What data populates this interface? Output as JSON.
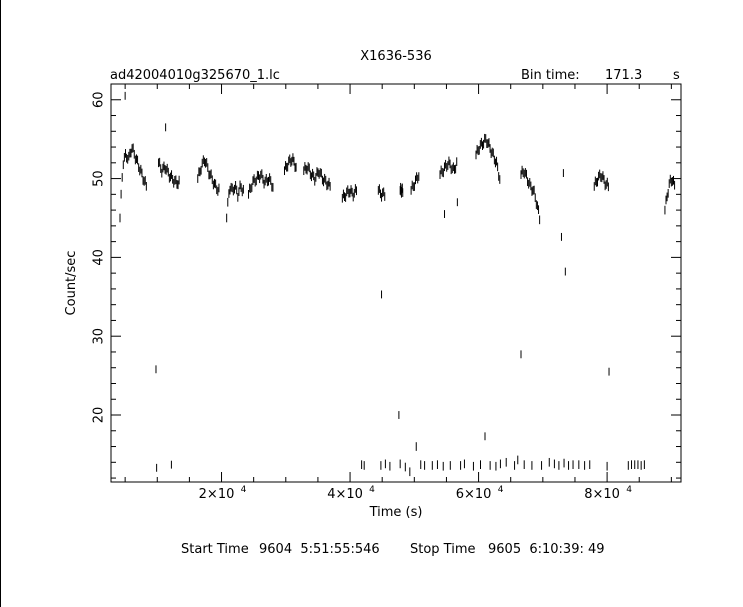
{
  "chart_data": {
    "type": "scatter",
    "title": "X1636-536",
    "file_label": "ad42004010g325670_1.lc",
    "bin_time_label": "Bin time:",
    "bin_time_value": "171.3",
    "bin_time_unit": "s",
    "xlabel": "Time (s)",
    "ylabel": "Count/sec",
    "xlim": [
      2800,
      91500
    ],
    "ylim": [
      11.5,
      62
    ],
    "x_ticks": [
      {
        "value": 20000,
        "mantissa": "2×10",
        "exp": "4"
      },
      {
        "value": 40000,
        "mantissa": "4×10",
        "exp": "4"
      },
      {
        "value": 60000,
        "mantissa": "6×10",
        "exp": "4"
      },
      {
        "value": 80000,
        "mantissa": "8×10",
        "exp": "4"
      }
    ],
    "y_ticks": [
      "20",
      "30",
      "40",
      "50",
      "60"
    ],
    "y_tick_values": [
      20,
      30,
      40,
      50,
      60
    ],
    "footer": {
      "start_label": "Start Time",
      "start_value": "9604  5:51:55:546",
      "stop_label": "Stop Time",
      "stop_value": "9605  6:10:39: 49"
    },
    "segments": [
      {
        "x0": 4200,
        "x1": 8300,
        "y": [
          45,
          52,
          53,
          52.5,
          54,
          53,
          52,
          51,
          50,
          49
        ]
      },
      {
        "x0": 10200,
        "x1": 13400,
        "y": [
          52,
          51,
          51.5,
          50.5,
          50,
          49.5,
          49.5
        ]
      },
      {
        "x0": 16300,
        "x1": 19600,
        "y": [
          50,
          51.5,
          52.5,
          51,
          50,
          49,
          48.5
        ]
      },
      {
        "x0": 20800,
        "x1": 23400,
        "y": [
          45,
          49,
          48.5,
          49,
          48,
          49,
          48.5
        ]
      },
      {
        "x0": 24200,
        "x1": 28000,
        "y": [
          48,
          49.5,
          50,
          50.5,
          49.5,
          50,
          49
        ]
      },
      {
        "x0": 29800,
        "x1": 31600,
        "y": [
          51,
          52,
          52.5,
          51.5
        ]
      },
      {
        "x0": 32800,
        "x1": 36900,
        "y": [
          51,
          51.5,
          50.5,
          50,
          51,
          50,
          49.5,
          49
        ]
      },
      {
        "x0": 38800,
        "x1": 41000,
        "y": [
          47.5,
          48,
          48.5,
          48,
          48.5
        ]
      },
      {
        "x0": 44400,
        "x1": 45400,
        "y": [
          48.5,
          48,
          48
        ]
      },
      {
        "x0": 47800,
        "x1": 48200,
        "y": [
          48.5,
          48.5
        ]
      },
      {
        "x0": 49500,
        "x1": 50700,
        "y": [
          48.5,
          49.5,
          50.5
        ]
      },
      {
        "x0": 54000,
        "x1": 56600,
        "y": [
          50.5,
          51,
          51.5,
          52,
          51.5,
          51,
          52
        ]
      },
      {
        "x0": 59600,
        "x1": 63300,
        "y": [
          53,
          54,
          54.5,
          55,
          54,
          53,
          52,
          50
        ]
      },
      {
        "x0": 66600,
        "x1": 69500,
        "y": [
          50.5,
          51,
          50,
          49,
          48.5,
          47,
          45
        ]
      },
      {
        "x0": 78000,
        "x1": 80200,
        "y": [
          49,
          50,
          50.5,
          49.5,
          49
        ]
      },
      {
        "x0": 89000,
        "x1": 90500,
        "y": [
          46,
          48,
          49.5,
          50,
          49
        ]
      }
    ],
    "isolated_points": [
      {
        "x": 5000,
        "y": 60.5
      },
      {
        "x": 9800,
        "y": 25.8
      },
      {
        "x": 9900,
        "y": 13.3
      },
      {
        "x": 11300,
        "y": 56.5
      },
      {
        "x": 12200,
        "y": 13.7
      },
      {
        "x": 44900,
        "y": 35.3
      },
      {
        "x": 47600,
        "y": 20
      },
      {
        "x": 54700,
        "y": 45.5
      },
      {
        "x": 56700,
        "y": 47
      },
      {
        "x": 61000,
        "y": 17.3
      },
      {
        "x": 66600,
        "y": 27.7
      },
      {
        "x": 72900,
        "y": 42.6
      },
      {
        "x": 73500,
        "y": 38.2
      },
      {
        "x": 73200,
        "y": 50.7
      },
      {
        "x": 80300,
        "y": 25.5
      }
    ],
    "low_points": [
      {
        "x": 41800,
        "y": 13.7
      },
      {
        "x": 42200,
        "y": 13.6
      },
      {
        "x": 44800,
        "y": 13.6
      },
      {
        "x": 45500,
        "y": 13.8
      },
      {
        "x": 46200,
        "y": 13.5
      },
      {
        "x": 47800,
        "y": 13.8
      },
      {
        "x": 48600,
        "y": 13.4
      },
      {
        "x": 49300,
        "y": 12.8
      },
      {
        "x": 50300,
        "y": 16
      },
      {
        "x": 51000,
        "y": 13.7
      },
      {
        "x": 51600,
        "y": 13.6
      },
      {
        "x": 52800,
        "y": 13.6
      },
      {
        "x": 53600,
        "y": 13.7
      },
      {
        "x": 54500,
        "y": 13.5
      },
      {
        "x": 55600,
        "y": 13.6
      },
      {
        "x": 57200,
        "y": 13.6
      },
      {
        "x": 57800,
        "y": 13.8
      },
      {
        "x": 59200,
        "y": 13.5
      },
      {
        "x": 60300,
        "y": 13.7
      },
      {
        "x": 61800,
        "y": 13.6
      },
      {
        "x": 62700,
        "y": 13.5
      },
      {
        "x": 63400,
        "y": 13.8
      },
      {
        "x": 64300,
        "y": 14
      },
      {
        "x": 65600,
        "y": 13.6
      },
      {
        "x": 66100,
        "y": 14.3
      },
      {
        "x": 67100,
        "y": 13.7
      },
      {
        "x": 68300,
        "y": 13.6
      },
      {
        "x": 69800,
        "y": 13.6
      },
      {
        "x": 71000,
        "y": 14
      },
      {
        "x": 71800,
        "y": 13.8
      },
      {
        "x": 72500,
        "y": 13.6
      },
      {
        "x": 73300,
        "y": 13.9
      },
      {
        "x": 74000,
        "y": 13.6
      },
      {
        "x": 74700,
        "y": 13.7
      },
      {
        "x": 75600,
        "y": 13.7
      },
      {
        "x": 76500,
        "y": 13.6
      },
      {
        "x": 77300,
        "y": 13.7
      },
      {
        "x": 80000,
        "y": 13.5
      },
      {
        "x": 83300,
        "y": 13.6
      },
      {
        "x": 83800,
        "y": 13.7
      },
      {
        "x": 84300,
        "y": 13.7
      },
      {
        "x": 84800,
        "y": 13.7
      },
      {
        "x": 85300,
        "y": 13.6
      },
      {
        "x": 85800,
        "y": 13.7
      }
    ],
    "grid": false,
    "legend": "none"
  }
}
